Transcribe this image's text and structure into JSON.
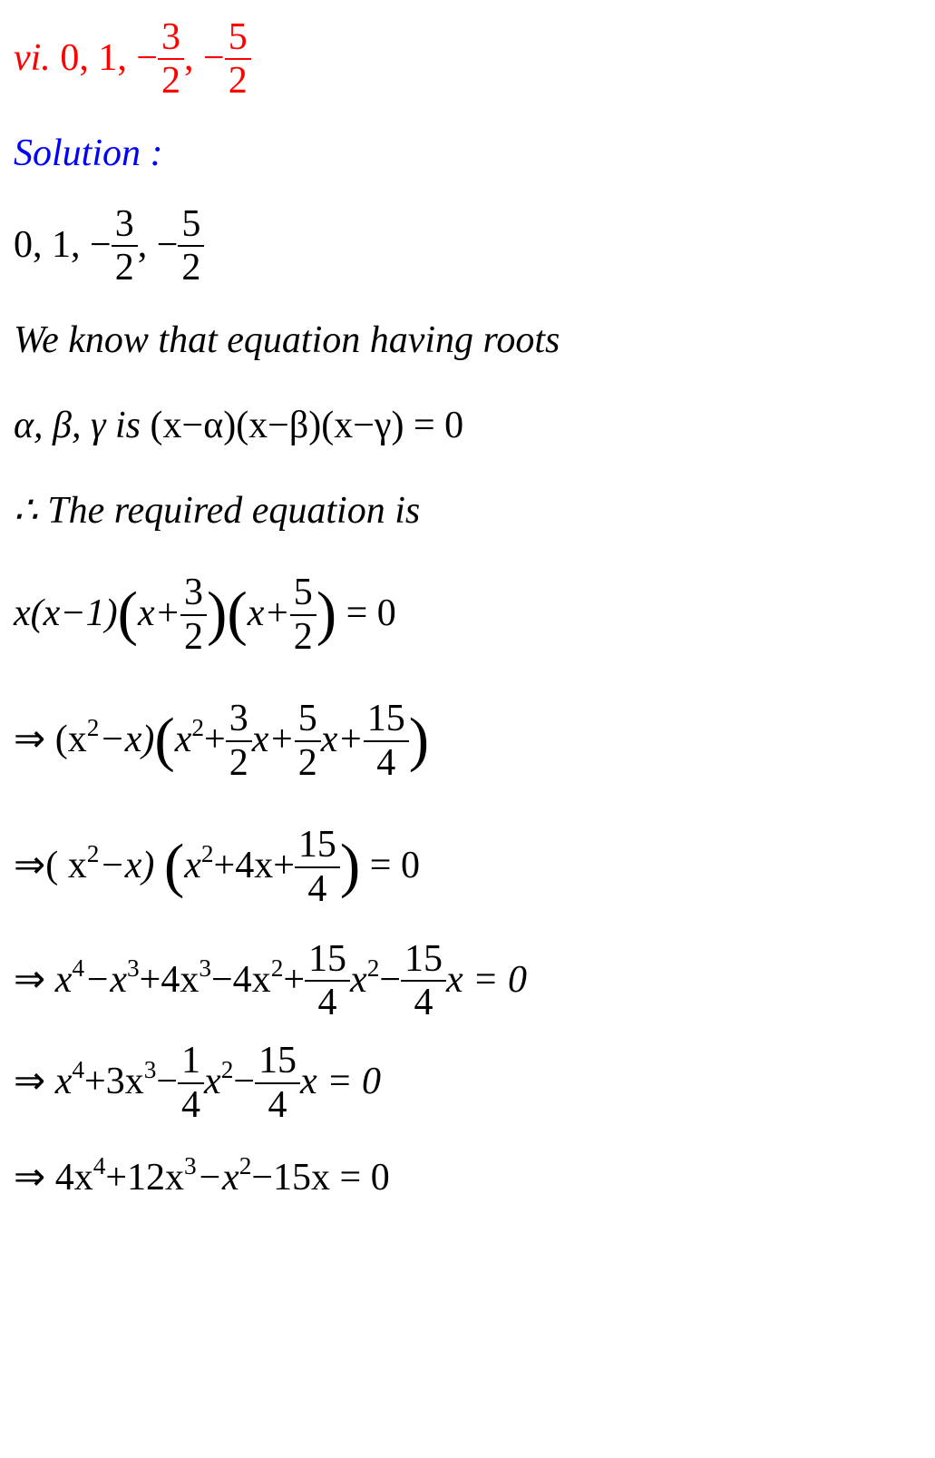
{
  "colors": {
    "red": "#ff0000",
    "blue": "#0000ff",
    "black": "#000000",
    "background": "#ffffff"
  },
  "typography": {
    "font_family": "Times New Roman",
    "font_style": "italic",
    "base_fontsize": 42
  },
  "lines": {
    "l1": {
      "prefix": " vi. ",
      "vals": "0, 1, −",
      "f1n": "3",
      "f1d": "2",
      "comma": ", −",
      "f2n": "5",
      "f2d": "2",
      "color": "red"
    },
    "l2": {
      "text": "Solution :",
      "color": "blue"
    },
    "l3": {
      "prefix": "0, 1, −",
      "f1n": "3",
      "f1d": "2",
      "comma": ", −",
      "f2n": "5",
      "f2d": "2"
    },
    "l4": {
      "text": "We know that equation having roots"
    },
    "l5": {
      "part1": "α, β, γ is ",
      "part2": "(x−α)(x−β)(x−γ) = 0"
    },
    "l6": {
      "text": "∴ The required equation is"
    },
    "l7": {
      "a": "x(x−1)",
      "b": "x+",
      "f1n": "3",
      "f1d": "2",
      "c": "x+",
      "f2n": "5",
      "f2d": "2",
      "eq": " = 0"
    },
    "l8": {
      "arrow": "⇒ ",
      "a": "(x",
      "sup1": "2",
      "b": "−x)",
      "c": "x",
      "sup2": "2",
      "d": "+",
      "f1n": "3",
      "f1d": "2",
      "e": "x+",
      "f2n": "5",
      "f2d": "2",
      "f": "x+",
      "f3n": "15",
      "f3d": "4"
    },
    "l9": {
      "arrow": "⇒",
      "a": "( x",
      "sup1": "2",
      "b": "−x) ",
      "c": "x",
      "sup2": "2",
      "d": "+4x+",
      "f1n": "15",
      "f1d": "4",
      "eq": " = 0"
    },
    "l10": {
      "arrow": "⇒ ",
      "a": "x",
      "sup1": "4",
      "b": "−x",
      "sup2": "3",
      "c": "+4x",
      "sup3": "3",
      "d": "−4x",
      "sup4": "2",
      "e": "+",
      "f1n": "15",
      "f1d": "4",
      "f": "x",
      "sup5": "2",
      "g": "−",
      "f2n": "15",
      "f2d": "4",
      "h": "x = 0"
    },
    "l11": {
      "arrow": "⇒ ",
      "a": "x",
      "sup1": "4",
      "b": "+3x",
      "sup2": "3",
      "c": "−",
      "f1n": "1",
      "f1d": "4",
      "d": "x",
      "sup3": "2",
      "e": "−",
      "f2n": "15",
      "f2d": "4",
      "f": "x = 0"
    },
    "l12": {
      "arrow": "⇒ ",
      "a": "4x",
      "sup1": "4",
      "b": "+12x",
      "sup2": "3",
      "c": "−x",
      "sup3": "2",
      "d": "−15x = 0"
    }
  }
}
